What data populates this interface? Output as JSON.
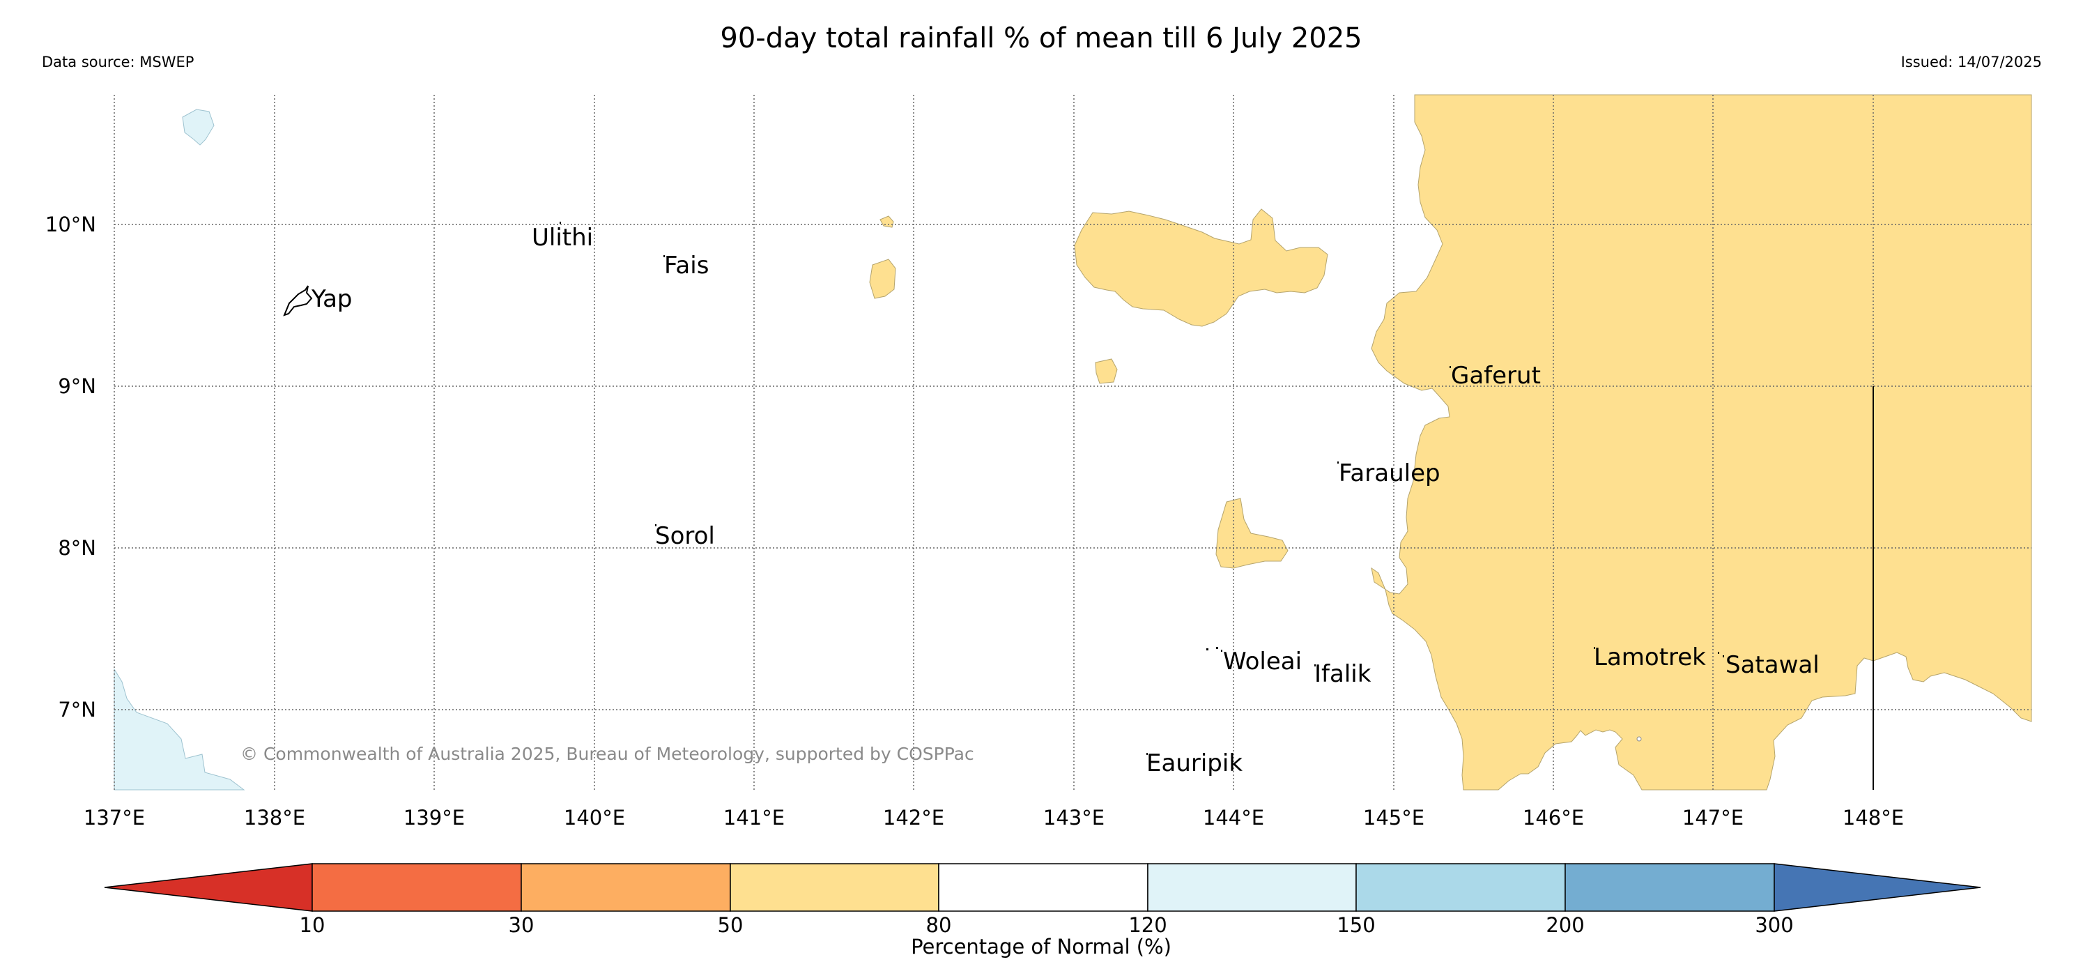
{
  "header": {
    "title": "90-day total rainfall % of mean till 6 July 2025",
    "data_source": "Data source: MSWEP",
    "issued": "Issued: 14/07/2025"
  },
  "map": {
    "lon_labels": [
      "137°E",
      "138°E",
      "139°E",
      "140°E",
      "141°E",
      "142°E",
      "143°E",
      "144°E",
      "145°E",
      "146°E",
      "147°E",
      "148°E"
    ],
    "lat_labels": [
      "10°N",
      "9°N",
      "8°N",
      "7°N"
    ],
    "places": {
      "yap": "Yap",
      "ulithi": "Ulithi",
      "fais": "Fais",
      "sorol": "Sorol",
      "gaferut": "Gaferut",
      "faraulep": "Faraulep",
      "woleai": "Woleai",
      "ifalik": "Ifalik",
      "eauripik": "Eauripik",
      "lamotrek": "Lamotrek",
      "satawal": "Satawal"
    },
    "copyright": "© Commonwealth of Australia 2025, Bureau of Meteorology, supported by COSPPac"
  },
  "colorbar": {
    "label": "Percentage of Normal (%)",
    "ticks": [
      "10",
      "30",
      "50",
      "80",
      "120",
      "150",
      "200",
      "300"
    ],
    "colors": {
      "below_10": "#d73027",
      "10_30": "#f46d43",
      "30_50": "#fdae61",
      "50_80": "#fee090",
      "80_120": "#ffffff",
      "120_150": "#e0f3f8",
      "150_200": "#abd9e9",
      "200_300": "#74add1",
      "above_300": "#4575b4"
    }
  }
}
